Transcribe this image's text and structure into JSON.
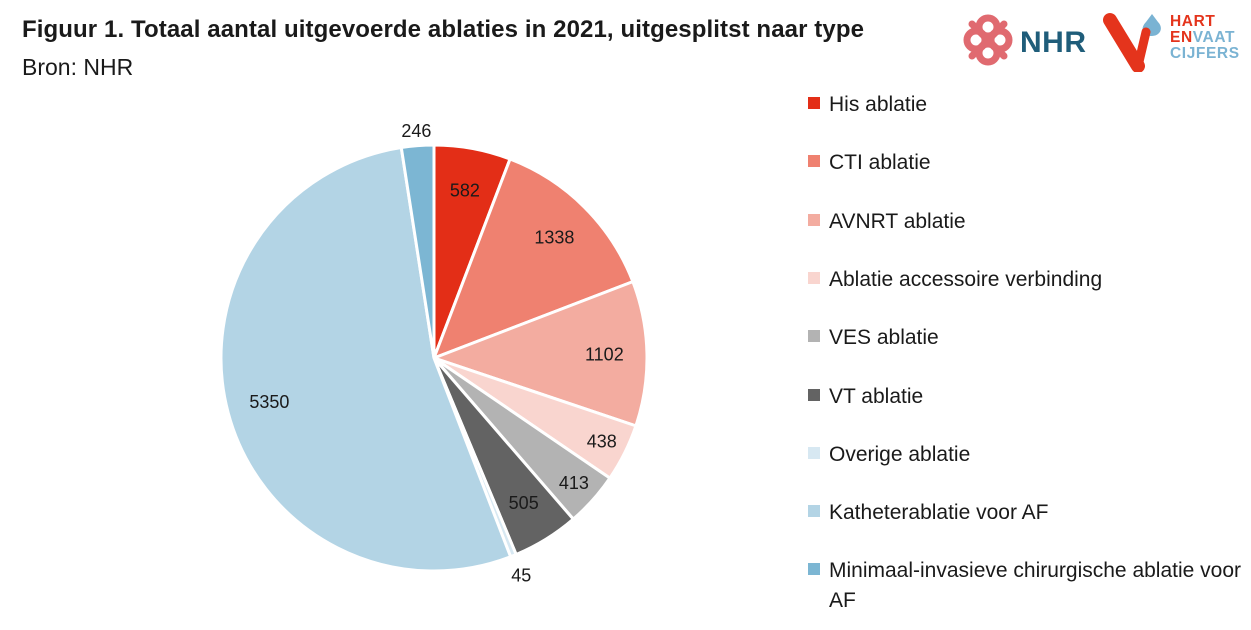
{
  "title": "Figuur 1. Totaal aantal uitgevoerde ablaties in 2021, uitgesplitst naar type",
  "subtitle": "Bron: NHR",
  "logos": {
    "nhr": "NHR",
    "hart_en_vaat": [
      "HART",
      "EN",
      "VAAT",
      "CIJFERS"
    ]
  },
  "chart_data": {
    "type": "pie",
    "title": "Figuur 1. Totaal aantal uitgevoerde ablaties in 2021, uitgesplitst naar type",
    "subtitle": "Bron: NHR",
    "legend_position": "right",
    "start_angle_deg": 0,
    "direction": "clockwise",
    "slices": [
      {
        "label": "His ablatie",
        "value": 582,
        "color": "#e32e17"
      },
      {
        "label": "CTI ablatie",
        "value": 1338,
        "color": "#ef8170"
      },
      {
        "label": "AVNRT ablatie",
        "value": 1102,
        "color": "#f3aca0"
      },
      {
        "label": "Ablatie accessoire verbinding",
        "value": 438,
        "color": "#f9d5cf"
      },
      {
        "label": "VES ablatie",
        "value": 413,
        "color": "#b3b3b3"
      },
      {
        "label": "VT ablatie",
        "value": 505,
        "color": "#636363"
      },
      {
        "label": "Overige ablatie",
        "value": 45,
        "color": "#d7e8f2"
      },
      {
        "label": "Katheterablatie voor AF",
        "value": 5350,
        "color": "#b3d4e5"
      },
      {
        "label": "Minimaal-invasieve chirurgische ablatie voor AF",
        "value": 246,
        "color": "#7cb6d3"
      }
    ]
  }
}
